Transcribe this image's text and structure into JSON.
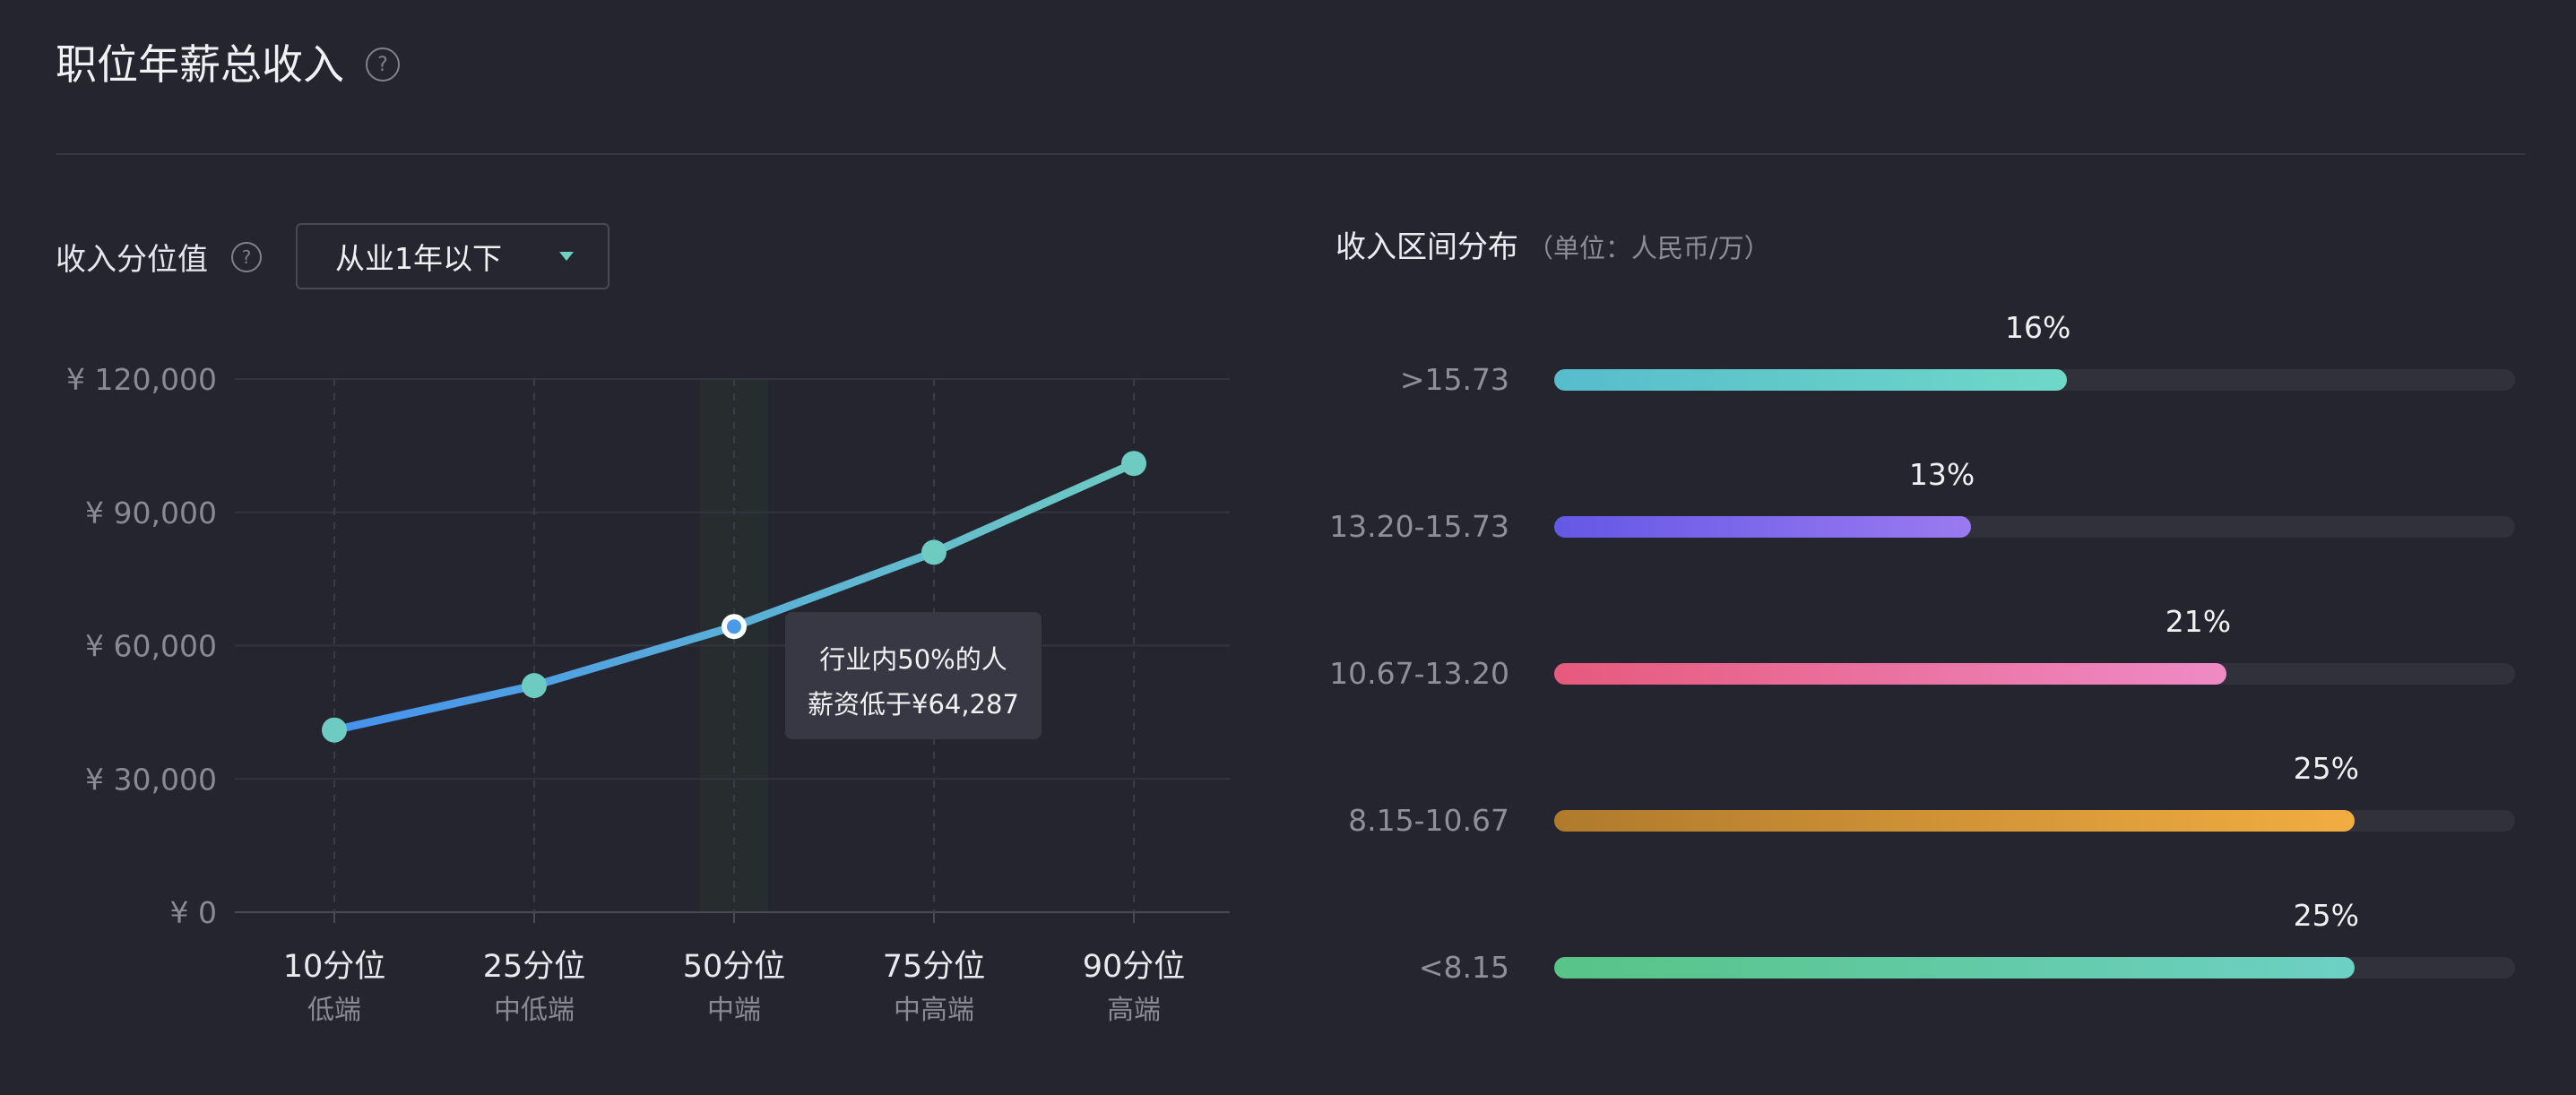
{
  "header": {
    "title": "职位年薪总收入",
    "help_glyph": "?"
  },
  "percentile_section": {
    "label": "收入分位值",
    "help_glyph": "?",
    "dropdown_value": "从业1年以下"
  },
  "tooltip": {
    "line1": "行业内50%的人",
    "line2": "薪资低于¥64,287"
  },
  "distribution": {
    "title": "收入区间分布",
    "unit": "（单位：人民币/万）"
  },
  "chart_data": [
    {
      "type": "line",
      "categories": [
        "10分位",
        "25分位",
        "50分位",
        "75分位",
        "90分位"
      ],
      "sublabels": [
        "低端",
        "中低端",
        "中端",
        "中高端",
        "高端"
      ],
      "series": [
        {
          "values": [
            41000,
            51000,
            64287,
            81000,
            101000
          ]
        }
      ],
      "y_ticks": [
        "¥ 0",
        "¥ 30,000",
        "¥ 60,000",
        "¥ 90,000",
        "¥ 120,000"
      ],
      "ylim": [
        0,
        120000
      ],
      "highlight_index": 2,
      "colors": {
        "line_start": "#4592ee",
        "line_end": "#6ecbc2",
        "marker": "#6ecbc2",
        "highlight_band": "#272d2e"
      }
    },
    {
      "type": "bar",
      "categories": [
        ">15.73",
        "13.20-15.73",
        "10.67-13.20",
        "8.15-10.67",
        "<8.15"
      ],
      "values": [
        16,
        13,
        21,
        25,
        25
      ],
      "labels": [
        "16%",
        "13%",
        "21%",
        "25%",
        "25%"
      ],
      "xlim": [
        0,
        30
      ],
      "colors": [
        [
          "#57bccc",
          "#6fd8c8"
        ],
        [
          "#6458e6",
          "#9a7af0"
        ],
        [
          "#e65a7c",
          "#ef8ac6"
        ],
        [
          "#b07a2c",
          "#f1ad40"
        ],
        [
          "#58c486",
          "#6dd0c4"
        ]
      ]
    }
  ]
}
